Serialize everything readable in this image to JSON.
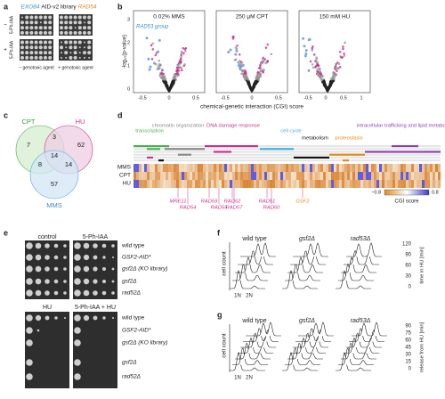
{
  "panels": {
    "a": {
      "label": "a",
      "strain_left": "EXO84",
      "title": "AID-v2 library",
      "strain_right": "RAD54",
      "row_minus": "−",
      "row_minus_label": "5-Ph-IAA",
      "row_plus": "+",
      "row_plus_label": "5-Ph-IAA",
      "col_left": "− genotoxic agent",
      "col_right": "+ genotoxic agent"
    },
    "b": {
      "label": "b",
      "plots": [
        {
          "title": "0.02% MMS",
          "xticks": [
            "-0.5",
            "0",
            "0.5"
          ]
        },
        {
          "title": "250 μM CPT",
          "xticks": [
            "-0.5",
            "0",
            "0.5"
          ]
        },
        {
          "title": "150 mM HU",
          "xticks": [
            "-0.5",
            "0",
            "0.5",
            "1"
          ]
        }
      ],
      "annotation": "RAD53 group",
      "ylabel": "-log₁₀(p-value)",
      "yticks": [
        "0",
        "1",
        "2",
        "3"
      ],
      "xlabel": "chemical-genetic interaction (CGI) score"
    },
    "c": {
      "label": "c",
      "sets": [
        "CPT",
        "HU",
        "MMS"
      ],
      "counts": {
        "cpt_only": 7,
        "cpt_hu": 3,
        "hu_only": 62,
        "cpt_mms": 8,
        "all": 14,
        "hu_mms": 14,
        "mms_only": 57
      }
    },
    "d": {
      "label": "d",
      "categories": [
        "transcription",
        "chromatin organization",
        "DNA damage response",
        "cell cycle",
        "metabolism",
        "proteostasis",
        "intracellular trafficking and lipid metabolism"
      ],
      "rows": [
        "MMS",
        "CPT",
        "HU"
      ],
      "genes": [
        "MRE11",
        "RAD54",
        "RAD59",
        "RAD55",
        "RAD52",
        "RAD57",
        "RAD51",
        "RAD60",
        "GSF2"
      ],
      "colorbar": {
        "min": "−0.8",
        "max": "0.8",
        "title": "CGI score"
      }
    },
    "e": {
      "label": "e",
      "top_columns": [
        "control",
        "5-Ph-IAA"
      ],
      "bottom_columns": [
        "HU",
        "5-Ph-IAA + HU"
      ],
      "strains": [
        "wild type",
        "GSF2-AID*",
        "gsf2Δ (KO library)",
        "gsf2Δ",
        "rad52Δ"
      ]
    },
    "f": {
      "label": "f",
      "strains": [
        "wild type",
        "gsf2Δ",
        "rad53Δ"
      ],
      "ylabel": "cell count",
      "xlabels": [
        "1N",
        "2N"
      ],
      "times": [
        "120",
        "90",
        "60",
        "30",
        "0"
      ],
      "time_title": "time in HU [min]"
    },
    "g": {
      "label": "g",
      "strains": [
        "wild type",
        "gsf2Δ",
        "rad53Δ"
      ],
      "ylabel": "cell count",
      "xlabels": [
        "1N",
        "2N"
      ],
      "times": [
        "90",
        "75",
        "60",
        "45",
        "30",
        "15",
        "0"
      ],
      "time_title": "release from HU [min]"
    }
  }
}
